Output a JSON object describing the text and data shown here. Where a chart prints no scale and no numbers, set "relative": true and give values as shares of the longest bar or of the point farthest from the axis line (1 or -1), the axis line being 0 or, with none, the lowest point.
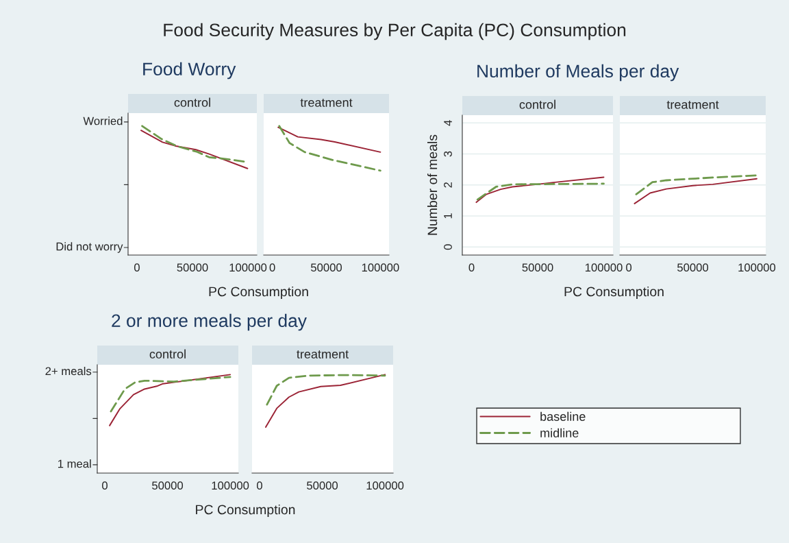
{
  "chart_data": [
    {
      "type": "line",
      "title": "control",
      "subtitle": "Food Worry",
      "xlabel": "PC Consumption",
      "annotations": [
        "Food Security Measures by Per Capita (PC) Consumption",
        "Did not worry",
        "Worried"
      ],
      "relative": true,
      "xlim": [
        -8000,
        108000
      ],
      "xticks": [
        0,
        50000,
        100000
      ],
      "series": [
        {
          "color": "#9b2335",
          "line_style": "solid",
          "x": [
            3700,
            23000,
            35000,
            53000,
            65000,
            99600
          ],
          "values": [
            0.966,
            0.875,
            0.845,
            0.817,
            0.783,
            0.671
          ]
        },
        {
          "color": "#6e9a4c",
          "line_style": "dashed",
          "x": [
            4700,
            22000,
            37000,
            54300,
            65000,
            76000,
            97400
          ],
          "values": [
            1.0,
            0.9,
            0.841,
            0.8,
            0.758,
            0.749,
            0.724
          ]
        }
      ]
    },
    {
      "type": "line",
      "title": "treatment",
      "relative": true,
      "xlim": [
        -8000,
        108000
      ],
      "xticks": [
        0,
        50000,
        100000
      ],
      "tick_labels": "x",
      "series": [
        {
          "color": "#9b2335",
          "line_style": "solid",
          "x": [
            5400,
            23600,
            45000,
            57800,
            100000
          ],
          "values": [
            0.99,
            0.916,
            0.895,
            0.877,
            0.798
          ]
        },
        {
          "color": "#6e9a4c",
          "line_style": "dashed",
          "x": [
            6400,
            16000,
            30000,
            55700,
            100000
          ],
          "values": [
            1.0,
            0.868,
            0.798,
            0.737,
            0.654
          ]
        }
      ]
    },
    {
      "type": "line",
      "title": "control",
      "subtitle": "Number of Meals per day",
      "xlabel": "PC Consumption",
      "ylabel": "Number of meals",
      "xlim": [
        -7000,
        107000
      ],
      "xticks": [
        0,
        50000,
        100000
      ],
      "ylim": [
        -0.26,
        4.25
      ],
      "yticks": [
        0,
        1,
        2,
        3,
        4
      ],
      "grid": "y",
      "series": [
        {
          "color": "#9b2335",
          "line_style": "solid",
          "x": [
            3600,
            11300,
            22000,
            31000,
            49500,
            62000,
            100000
          ],
          "values": [
            1.44,
            1.7,
            1.86,
            1.94,
            2.02,
            2.08,
            2.25
          ]
        },
        {
          "color": "#6e9a4c",
          "line_style": "dashed",
          "x": [
            4500,
            18500,
            31000,
            100000
          ],
          "values": [
            1.53,
            1.94,
            2.02,
            2.04
          ]
        }
      ]
    },
    {
      "type": "line",
      "title": "treatment",
      "xlim": [
        -7000,
        107000
      ],
      "xticks": [
        0,
        50000,
        100000
      ],
      "ylim": [
        -0.26,
        4.25
      ],
      "yticks": [
        {
          "value": 0,
          "label": null
        },
        {
          "value": 1,
          "label": null
        },
        {
          "value": 2,
          "label": null
        },
        {
          "value": 3,
          "label": null
        },
        {
          "value": 4,
          "label": null
        }
      ],
      "tick_labels": "x",
      "grid": "y",
      "series": [
        {
          "color": "#9b2335",
          "line_style": "solid",
          "x": [
            4500,
            16700,
            29300,
            50000,
            65600,
            100000
          ],
          "values": [
            1.4,
            1.74,
            1.87,
            1.98,
            2.02,
            2.2
          ]
        },
        {
          "color": "#6e9a4c",
          "line_style": "dashed",
          "x": [
            5800,
            18500,
            29300,
            65600,
            100000
          ],
          "values": [
            1.7,
            2.09,
            2.15,
            2.24,
            2.31
          ]
        }
      ]
    },
    {
      "type": "line",
      "title": "control",
      "subtitle": "2 or more meals per day",
      "xlabel": "PC Consumption",
      "annotations": [
        "1 meal",
        "2+ meals"
      ],
      "relative": true,
      "xlim": [
        -6000,
        106500
      ],
      "xticks": [
        0,
        50000,
        100000
      ],
      "series": [
        {
          "color": "#9b2335",
          "line_style": "solid",
          "x": [
            3900,
            12100,
            22900,
            31700,
            41500,
            46400,
            65000,
            100000
          ],
          "values": [
            0.483,
            0.654,
            0.796,
            0.853,
            0.882,
            0.907,
            0.938,
            1.0
          ]
        },
        {
          "color": "#6e9a4c",
          "line_style": "dashed",
          "x": [
            4900,
            16000,
            23900,
            31700,
            55200,
            100000
          ],
          "values": [
            0.626,
            0.853,
            0.919,
            0.938,
            0.929,
            0.976
          ]
        }
      ]
    },
    {
      "type": "line",
      "title": "treatment",
      "legend": "right",
      "relative": true,
      "xlim": [
        -6000,
        106500
      ],
      "xticks": [
        0,
        50000,
        100000
      ],
      "tick_labels": "x",
      "series": [
        {
          "name": "baseline",
          "color": "#9b2335",
          "line_style": "solid",
          "x": [
            4900,
            13700,
            23400,
            31300,
            48800,
            64500,
            100000
          ],
          "values": [
            0.467,
            0.657,
            0.771,
            0.824,
            0.879,
            0.891,
            1.0
          ]
        },
        {
          "name": "midline",
          "color": "#6e9a4c",
          "line_style": "dashed",
          "x": [
            5900,
            13700,
            23400,
            39000,
            68400,
            100000
          ],
          "values": [
            0.695,
            0.886,
            0.967,
            0.99,
            0.995,
            0.99
          ]
        }
      ]
    }
  ]
}
